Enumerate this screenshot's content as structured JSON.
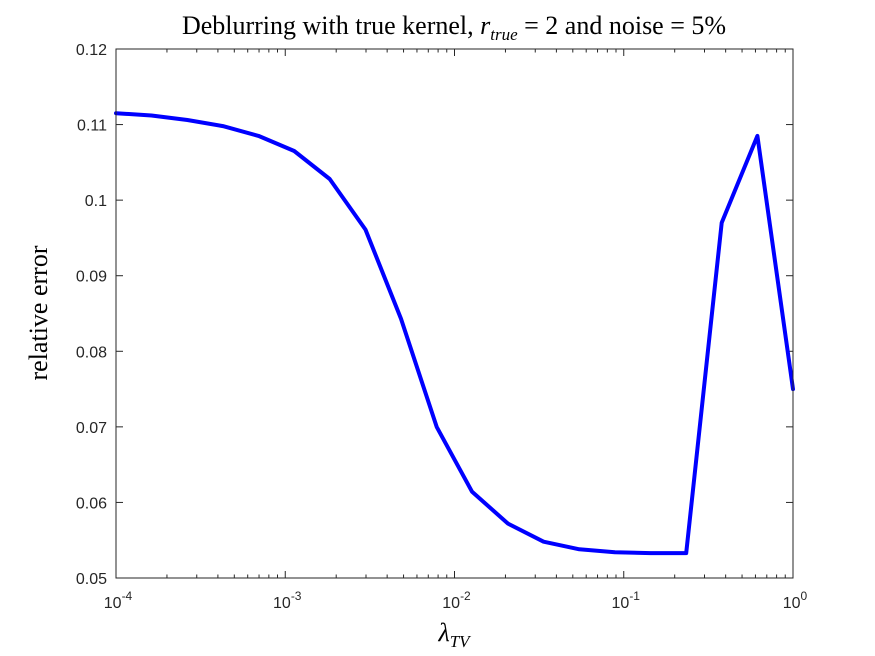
{
  "chart_data": {
    "type": "line",
    "title_parts": {
      "prefix": "Deblurring with true kernel, ",
      "var_base": "r",
      "var_sub": "true",
      "middle": " = 2 and noise = 5%"
    },
    "xlabel_parts": {
      "base": "λ",
      "sub": "TV"
    },
    "ylabel": "relative error",
    "x_scale": "log",
    "xlim": [
      0.0001,
      1
    ],
    "ylim": [
      0.05,
      0.12
    ],
    "x_ticks": [
      {
        "value": 0.0001,
        "base": "10",
        "exp": "-4"
      },
      {
        "value": 0.001,
        "base": "10",
        "exp": "-3"
      },
      {
        "value": 0.01,
        "base": "10",
        "exp": "-2"
      },
      {
        "value": 0.1,
        "base": "10",
        "exp": "-1"
      },
      {
        "value": 1,
        "base": "10",
        "exp": "0"
      }
    ],
    "y_ticks": [
      {
        "value": 0.05,
        "label": "0.05"
      },
      {
        "value": 0.06,
        "label": "0.06"
      },
      {
        "value": 0.07,
        "label": "0.07"
      },
      {
        "value": 0.08,
        "label": "0.08"
      },
      {
        "value": 0.09,
        "label": "0.09"
      },
      {
        "value": 0.1,
        "label": "0.1"
      },
      {
        "value": 0.11,
        "label": "0.11"
      },
      {
        "value": 0.12,
        "label": "0.12"
      }
    ],
    "grid": false,
    "series": [
      {
        "color": "#0000ff",
        "points": [
          [
            0.0001,
            0.1115
          ],
          [
            0.000162,
            0.1112
          ],
          [
            0.000264,
            0.1106
          ],
          [
            0.000428,
            0.1098
          ],
          [
            0.000695,
            0.1085
          ],
          [
            0.00113,
            0.1065
          ],
          [
            0.00183,
            0.1028
          ],
          [
            0.00298,
            0.0961
          ],
          [
            0.00483,
            0.0843
          ],
          [
            0.00785,
            0.07
          ],
          [
            0.0127,
            0.0614
          ],
          [
            0.0207,
            0.0572
          ],
          [
            0.0336,
            0.0548
          ],
          [
            0.0546,
            0.0538
          ],
          [
            0.0886,
            0.0534
          ],
          [
            0.144,
            0.0533
          ],
          [
            0.234,
            0.0533
          ],
          [
            0.379,
            0.097
          ],
          [
            0.616,
            0.1085
          ],
          [
            1.0,
            0.075
          ]
        ]
      }
    ]
  }
}
